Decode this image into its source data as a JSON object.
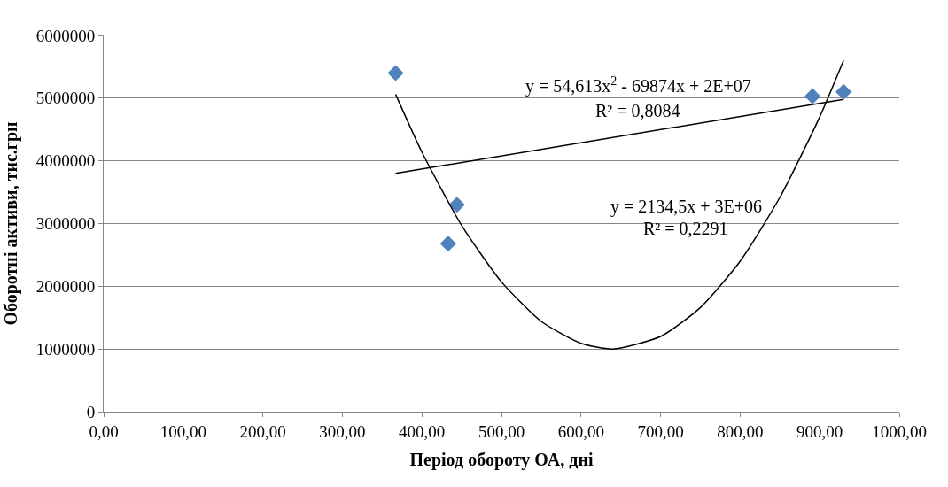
{
  "chart_data": {
    "type": "scatter",
    "xlabel": "Період обороту ОА, дні",
    "ylabel": "Оборотні активи, тис.грн",
    "xlim": [
      0,
      1000
    ],
    "xticks": [
      {
        "value": 0,
        "label": "0,00"
      },
      {
        "value": 100,
        "label": "100,00"
      },
      {
        "value": 200,
        "label": "200,00"
      },
      {
        "value": 300,
        "label": "300,00"
      },
      {
        "value": 400,
        "label": "400,00"
      },
      {
        "value": 500,
        "label": "500,00"
      },
      {
        "value": 600,
        "label": "600,00"
      },
      {
        "value": 700,
        "label": "700,00"
      },
      {
        "value": 800,
        "label": "800,00"
      },
      {
        "value": 900,
        "label": "900,00"
      },
      {
        "value": 1000,
        "label": "1000,00"
      }
    ],
    "ylim": [
      0,
      6000000
    ],
    "yticks": [
      0,
      1000000,
      2000000,
      3000000,
      4000000,
      5000000,
      6000000
    ],
    "grid": "y",
    "series": [
      {
        "marker": "diamond",
        "color": "#4f81bd",
        "x": [
          367,
          433,
          444,
          891,
          930
        ],
        "values": [
          5400000,
          2680000,
          3300000,
          5030000,
          5100000
        ]
      },
      {
        "type": "line",
        "marker": "none",
        "line_style": "solid",
        "color": "#000000",
        "x": [
          367,
          930
        ],
        "values": [
          3800000,
          4980000
        ]
      },
      {
        "type": "line",
        "marker": "none",
        "line_style": "solid",
        "color": "#000000",
        "x": [
          367,
          400,
          450,
          500,
          550,
          600,
          640,
          700,
          750,
          800,
          850,
          900,
          930
        ],
        "values": [
          5060000,
          4140000,
          2970000,
          2070000,
          1440000,
          1090000,
          1000000,
          1200000,
          1660000,
          2400000,
          3420000,
          4700000,
          5600000
        ]
      }
    ],
    "annotations": [
      "y = 54,613x$^{2}$ - 69874x + 2E+07",
      "R² = 0,8084",
      "y = 2134,5x + 3E+06",
      "R² = 0,2291"
    ]
  }
}
